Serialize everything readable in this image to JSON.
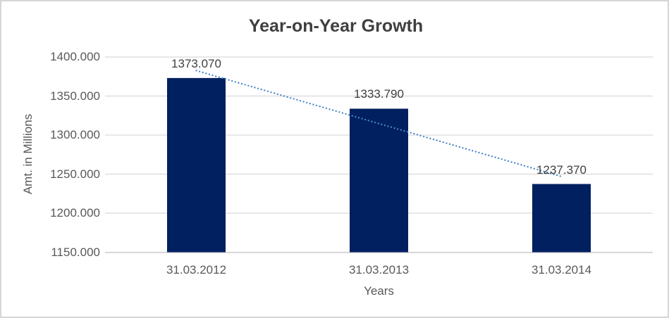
{
  "chart_data": {
    "type": "bar",
    "title": "Year-on-Year Growth",
    "categories": [
      "31.03.2012",
      "31.03.2013",
      "31.03.2014"
    ],
    "values": [
      1373.07,
      1333.79,
      1237.37
    ],
    "data_labels": [
      "1373.070",
      "1333.790",
      "1237.370"
    ],
    "xlabel": "Years",
    "ylabel": "Amt. in Millions",
    "ylim": [
      1150,
      1400
    ],
    "ytick_step": 50,
    "ytick_labels": [
      "1150.000",
      "1200.000",
      "1250.000",
      "1300.000",
      "1350.000",
      "1400.000"
    ],
    "grid": true,
    "legend": "none",
    "trendline": {
      "type": "linear",
      "style": "dotted"
    },
    "colors": {
      "bar": "#002060",
      "trendline": "#4a86c8",
      "gridline": "#d9d9d9",
      "axis_line": "#d2d2d2",
      "title_text": "#3f3f3f",
      "axis_text": "#595959",
      "label_text": "#404040",
      "border": "#d6d6d6",
      "background": "#ffffff"
    }
  }
}
